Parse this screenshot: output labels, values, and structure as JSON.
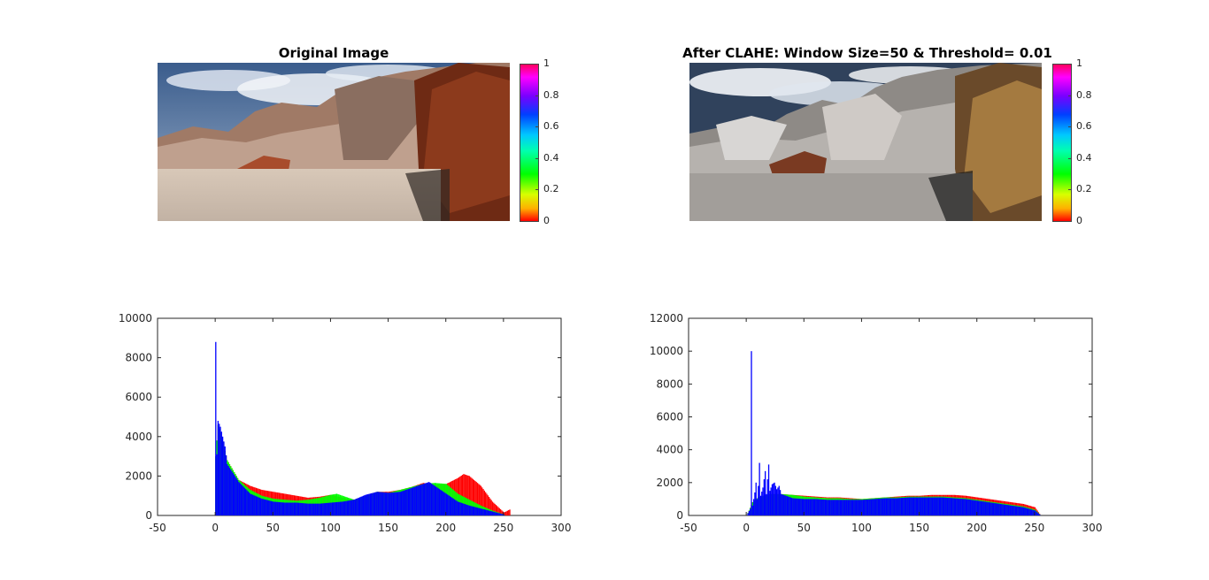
{
  "figure": {
    "title_left": "Original Image",
    "title_right": "After CLAHE: Window Size=50 & Threshold= 0.01"
  },
  "colorbar": {
    "ticks": [
      "0",
      "0.2",
      "0.4",
      "0.6",
      "0.8",
      "1"
    ]
  },
  "colors": {
    "red": "#ff0000",
    "green": "#00ff00",
    "blue": "#0000ff"
  },
  "chart_data": [
    {
      "type": "bar",
      "title": "",
      "xlabel": "",
      "ylabel": "",
      "xlim": [
        -50,
        300
      ],
      "ylim": [
        0,
        10000
      ],
      "xticks": [
        -50,
        0,
        50,
        100,
        150,
        200,
        250,
        300
      ],
      "yticks": [
        0,
        2000,
        4000,
        6000,
        8000,
        10000
      ],
      "series": [
        {
          "name": "",
          "color": "red",
          "points": [
            [
              0,
              3000
            ],
            [
              2,
              4600
            ],
            [
              5,
              4000
            ],
            [
              10,
              2800
            ],
            [
              20,
              1800
            ],
            [
              30,
              1500
            ],
            [
              40,
              1300
            ],
            [
              50,
              1200
            ],
            [
              60,
              1100
            ],
            [
              70,
              1000
            ],
            [
              80,
              900
            ],
            [
              90,
              950
            ],
            [
              100,
              1050
            ],
            [
              110,
              900
            ],
            [
              120,
              800
            ],
            [
              130,
              1000
            ],
            [
              140,
              1200
            ],
            [
              150,
              1200
            ],
            [
              160,
              1300
            ],
            [
              170,
              1450
            ],
            [
              180,
              1650
            ],
            [
              190,
              1550
            ],
            [
              200,
              1600
            ],
            [
              210,
              1900
            ],
            [
              215,
              2100
            ],
            [
              220,
              2000
            ],
            [
              230,
              1500
            ],
            [
              240,
              700
            ],
            [
              250,
              150
            ],
            [
              255,
              300
            ]
          ]
        },
        {
          "name": "",
          "color": "green",
          "points": [
            [
              0,
              3000
            ],
            [
              2,
              4600
            ],
            [
              5,
              4000
            ],
            [
              10,
              2800
            ],
            [
              20,
              1800
            ],
            [
              30,
              1300
            ],
            [
              40,
              1000
            ],
            [
              50,
              850
            ],
            [
              60,
              800
            ],
            [
              70,
              750
            ],
            [
              80,
              800
            ],
            [
              90,
              900
            ],
            [
              100,
              1050
            ],
            [
              105,
              1100
            ],
            [
              110,
              1000
            ],
            [
              120,
              800
            ],
            [
              130,
              1000
            ],
            [
              140,
              1200
            ],
            [
              150,
              1150
            ],
            [
              160,
              1300
            ],
            [
              170,
              1450
            ],
            [
              180,
              1600
            ],
            [
              190,
              1650
            ],
            [
              200,
              1600
            ],
            [
              210,
              1100
            ],
            [
              220,
              800
            ],
            [
              230,
              500
            ],
            [
              240,
              250
            ],
            [
              250,
              50
            ]
          ]
        },
        {
          "name": "",
          "color": "blue",
          "points": [
            [
              0,
              8800
            ],
            [
              1,
              3100
            ],
            [
              2,
              4800
            ],
            [
              4,
              4500
            ],
            [
              8,
              3500
            ],
            [
              10,
              2600
            ],
            [
              20,
              1700
            ],
            [
              30,
              1100
            ],
            [
              40,
              850
            ],
            [
              50,
              700
            ],
            [
              60,
              650
            ],
            [
              70,
              650
            ],
            [
              80,
              600
            ],
            [
              90,
              600
            ],
            [
              100,
              650
            ],
            [
              110,
              700
            ],
            [
              120,
              800
            ],
            [
              130,
              1050
            ],
            [
              140,
              1200
            ],
            [
              150,
              1150
            ],
            [
              160,
              1200
            ],
            [
              170,
              1400
            ],
            [
              180,
              1600
            ],
            [
              185,
              1700
            ],
            [
              190,
              1500
            ],
            [
              200,
              1100
            ],
            [
              210,
              700
            ],
            [
              220,
              500
            ],
            [
              230,
              350
            ],
            [
              240,
              200
            ],
            [
              250,
              50
            ]
          ]
        }
      ]
    },
    {
      "type": "bar",
      "title": "",
      "xlabel": "",
      "ylabel": "",
      "xlim": [
        -50,
        300
      ],
      "ylim": [
        0,
        12000
      ],
      "xticks": [
        -50,
        0,
        50,
        100,
        150,
        200,
        250,
        300
      ],
      "yticks": [
        0,
        2000,
        4000,
        6000,
        8000,
        10000,
        12000
      ],
      "series": [
        {
          "name": "",
          "color": "red",
          "points": [
            [
              0,
              0
            ],
            [
              2,
              300
            ],
            [
              5,
              800
            ],
            [
              10,
              1100
            ],
            [
              20,
              1300
            ],
            [
              30,
              1300
            ],
            [
              40,
              1250
            ],
            [
              50,
              1200
            ],
            [
              60,
              1150
            ],
            [
              70,
              1100
            ],
            [
              80,
              1100
            ],
            [
              90,
              1050
            ],
            [
              100,
              1000
            ],
            [
              110,
              1050
            ],
            [
              120,
              1100
            ],
            [
              130,
              1150
            ],
            [
              140,
              1200
            ],
            [
              150,
              1200
            ],
            [
              160,
              1250
            ],
            [
              170,
              1250
            ],
            [
              180,
              1250
            ],
            [
              190,
              1200
            ],
            [
              200,
              1100
            ],
            [
              210,
              1000
            ],
            [
              220,
              900
            ],
            [
              230,
              800
            ],
            [
              240,
              700
            ],
            [
              250,
              500
            ],
            [
              255,
              0
            ]
          ]
        },
        {
          "name": "",
          "color": "green",
          "points": [
            [
              0,
              0
            ],
            [
              2,
              300
            ],
            [
              5,
              800
            ],
            [
              10,
              1100
            ],
            [
              20,
              1300
            ],
            [
              30,
              1300
            ],
            [
              40,
              1250
            ],
            [
              50,
              1150
            ],
            [
              60,
              1100
            ],
            [
              70,
              1050
            ],
            [
              80,
              1050
            ],
            [
              90,
              1000
            ],
            [
              100,
              1000
            ],
            [
              110,
              1050
            ],
            [
              120,
              1100
            ],
            [
              130,
              1100
            ],
            [
              140,
              1150
            ],
            [
              150,
              1150
            ],
            [
              160,
              1150
            ],
            [
              170,
              1150
            ],
            [
              180,
              1100
            ],
            [
              190,
              1050
            ],
            [
              200,
              950
            ],
            [
              210,
              850
            ],
            [
              220,
              750
            ],
            [
              230,
              650
            ],
            [
              240,
              550
            ],
            [
              250,
              350
            ],
            [
              255,
              0
            ]
          ]
        },
        {
          "name": "",
          "color": "blue",
          "points": [
            [
              0,
              0
            ],
            [
              3,
              400
            ],
            [
              4,
              10000
            ],
            [
              5,
              600
            ],
            [
              7,
              1400
            ],
            [
              8,
              2000
            ],
            [
              9,
              1000
            ],
            [
              10,
              1800
            ],
            [
              11,
              3200
            ],
            [
              12,
              1200
            ],
            [
              14,
              1700
            ],
            [
              16,
              2700
            ],
            [
              17,
              1300
            ],
            [
              19,
              3100
            ],
            [
              20,
              1500
            ],
            [
              22,
              1900
            ],
            [
              24,
              2000
            ],
            [
              26,
              1600
            ],
            [
              28,
              1800
            ],
            [
              30,
              1300
            ],
            [
              40,
              1050
            ],
            [
              50,
              1000
            ],
            [
              60,
              1000
            ],
            [
              70,
              950
            ],
            [
              80,
              950
            ],
            [
              90,
              950
            ],
            [
              100,
              950
            ],
            [
              110,
              1000
            ],
            [
              120,
              1050
            ],
            [
              130,
              1050
            ],
            [
              140,
              1100
            ],
            [
              150,
              1100
            ],
            [
              160,
              1100
            ],
            [
              170,
              1100
            ],
            [
              180,
              1050
            ],
            [
              190,
              1000
            ],
            [
              200,
              900
            ],
            [
              210,
              800
            ],
            [
              220,
              700
            ],
            [
              230,
              600
            ],
            [
              240,
              500
            ],
            [
              250,
              300
            ],
            [
              255,
              0
            ]
          ]
        }
      ]
    }
  ]
}
